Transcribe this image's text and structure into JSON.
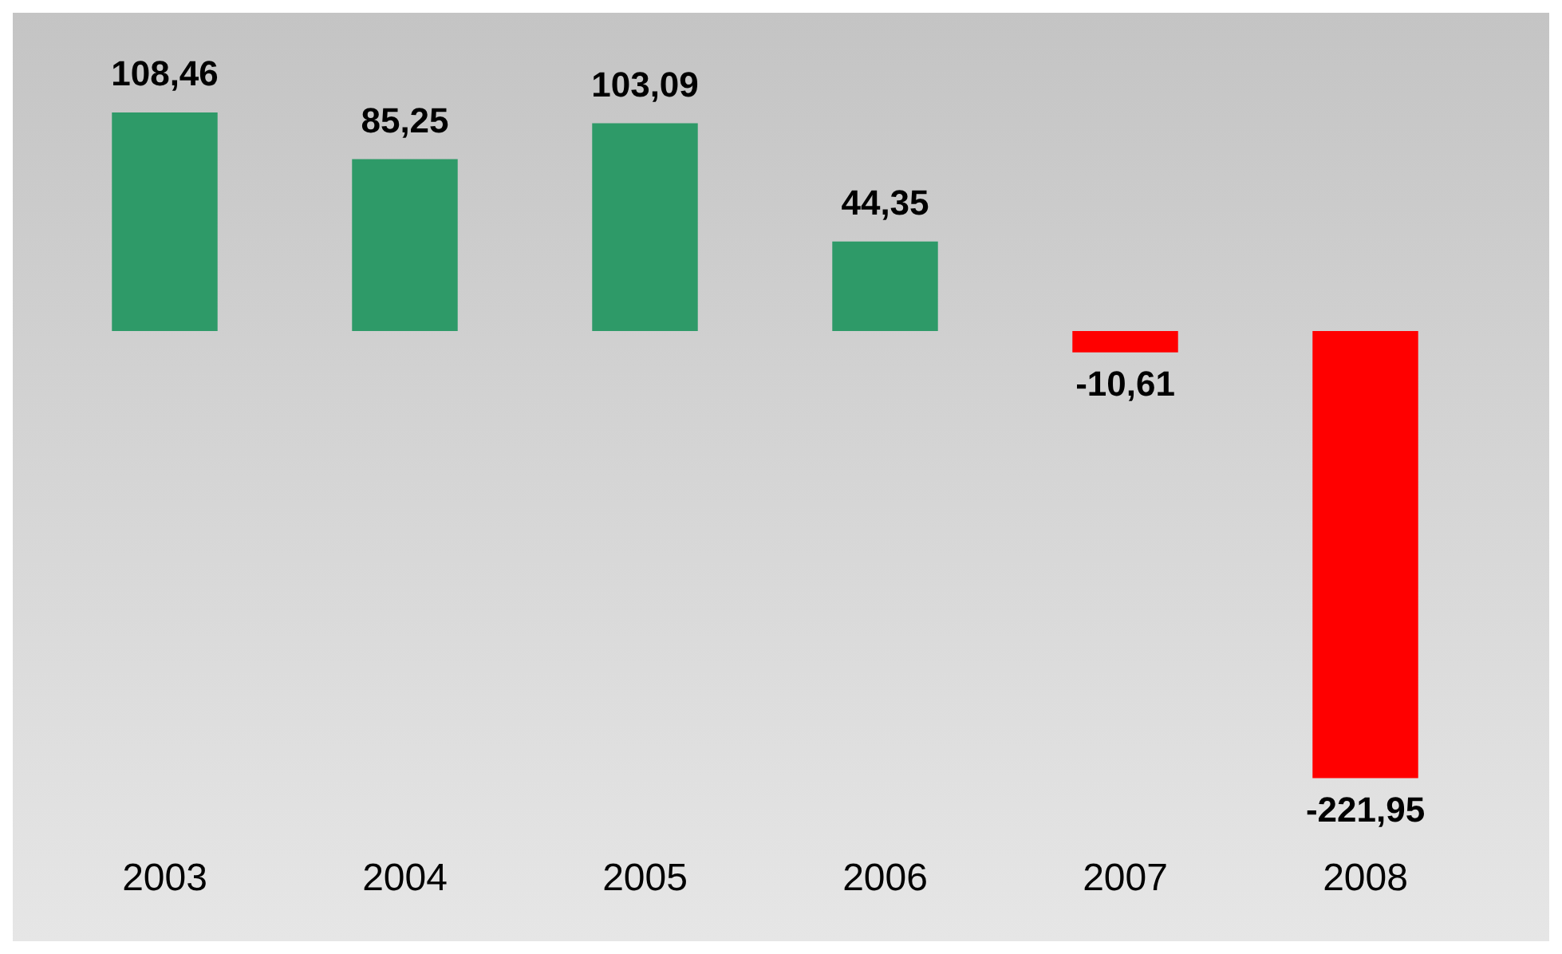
{
  "chart_data": {
    "type": "bar",
    "categories": [
      "2003",
      "2004",
      "2005",
      "2006",
      "2007",
      "2008"
    ],
    "values": [
      108.46,
      85.25,
      103.09,
      44.35,
      -10.61,
      -221.95
    ],
    "colors": [
      "#2e9a68",
      "#2e9a68",
      "#2e9a68",
      "#2e9a68",
      "#ff0000",
      "#ff0000"
    ],
    "value_labels": [
      "108,46",
      "85,25",
      "103,09",
      "44,35",
      "-10,61",
      "-221,95"
    ],
    "grid": false,
    "legend": false,
    "tick_labels": "x"
  }
}
